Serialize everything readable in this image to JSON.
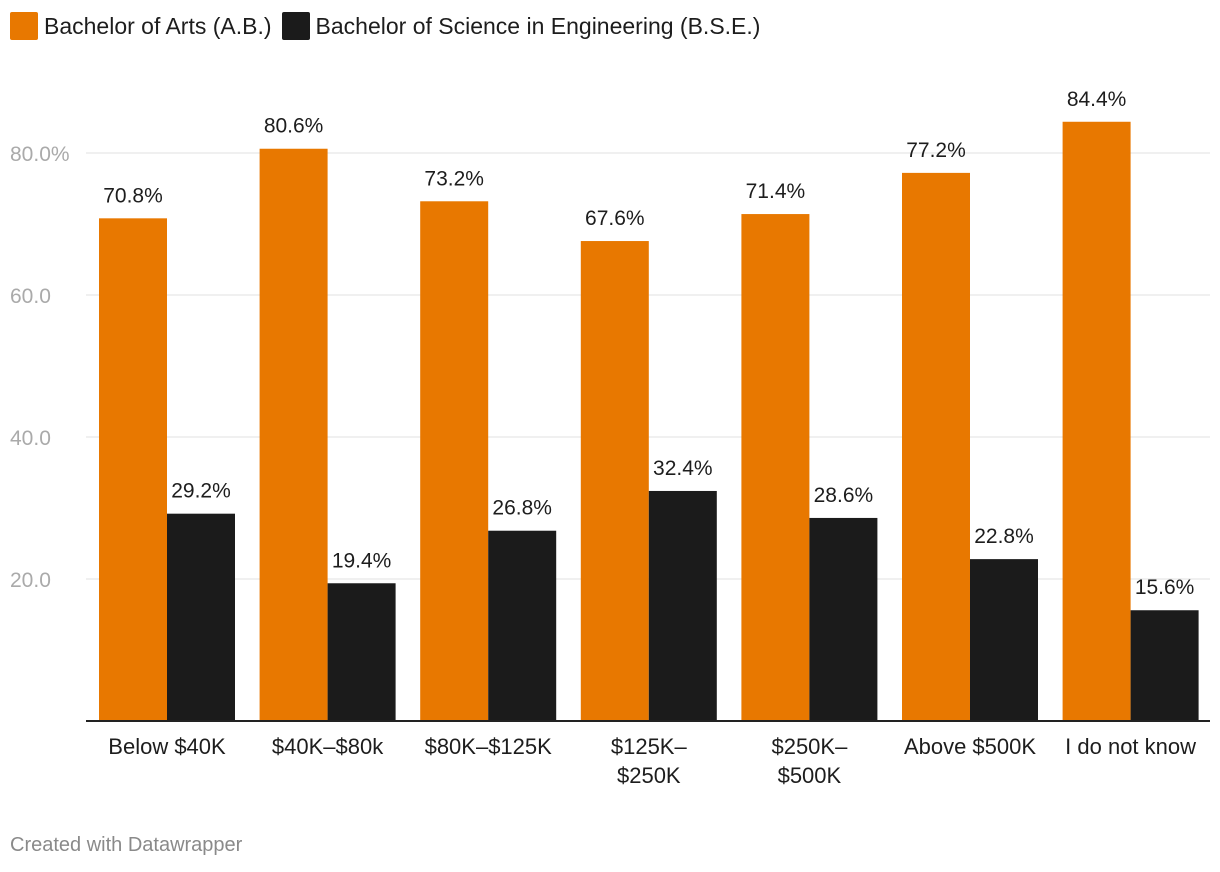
{
  "chart_data": {
    "type": "bar",
    "title": "",
    "xlabel": "",
    "ylabel": "",
    "ylim": [
      0,
      90
    ],
    "yticks": [
      {
        "value": 20,
        "label": "20.0"
      },
      {
        "value": 40,
        "label": "40.0"
      },
      {
        "value": 60,
        "label": "60.0"
      },
      {
        "value": 80,
        "label": "80.0%"
      }
    ],
    "grid": true,
    "legend_position": "top-left",
    "categories": [
      [
        "Below $40K"
      ],
      [
        "$40K–$80k"
      ],
      [
        "$80K–$125K"
      ],
      [
        "$125K–",
        "$250K"
      ],
      [
        "$250K–",
        "$500K"
      ],
      [
        "Above $500K"
      ],
      [
        "I do not know"
      ]
    ],
    "series": [
      {
        "name": "Bachelor of Arts (A.B.)",
        "color": "#e87800",
        "values": [
          70.8,
          80.6,
          73.2,
          67.6,
          71.4,
          77.2,
          84.4
        ],
        "labels": [
          "70.8%",
          "80.6%",
          "73.2%",
          "67.6%",
          "71.4%",
          "77.2%",
          "84.4%"
        ]
      },
      {
        "name": "Bachelor of Science in Engineering (B.S.E.)",
        "color": "#1b1b1b",
        "values": [
          29.2,
          19.4,
          26.8,
          32.4,
          28.6,
          22.8,
          15.6
        ],
        "labels": [
          "29.2%",
          "19.4%",
          "26.8%",
          "32.4%",
          "28.6%",
          "22.8%",
          "15.6%"
        ]
      }
    ]
  },
  "footer": {
    "text": "Created with Datawrapper"
  }
}
